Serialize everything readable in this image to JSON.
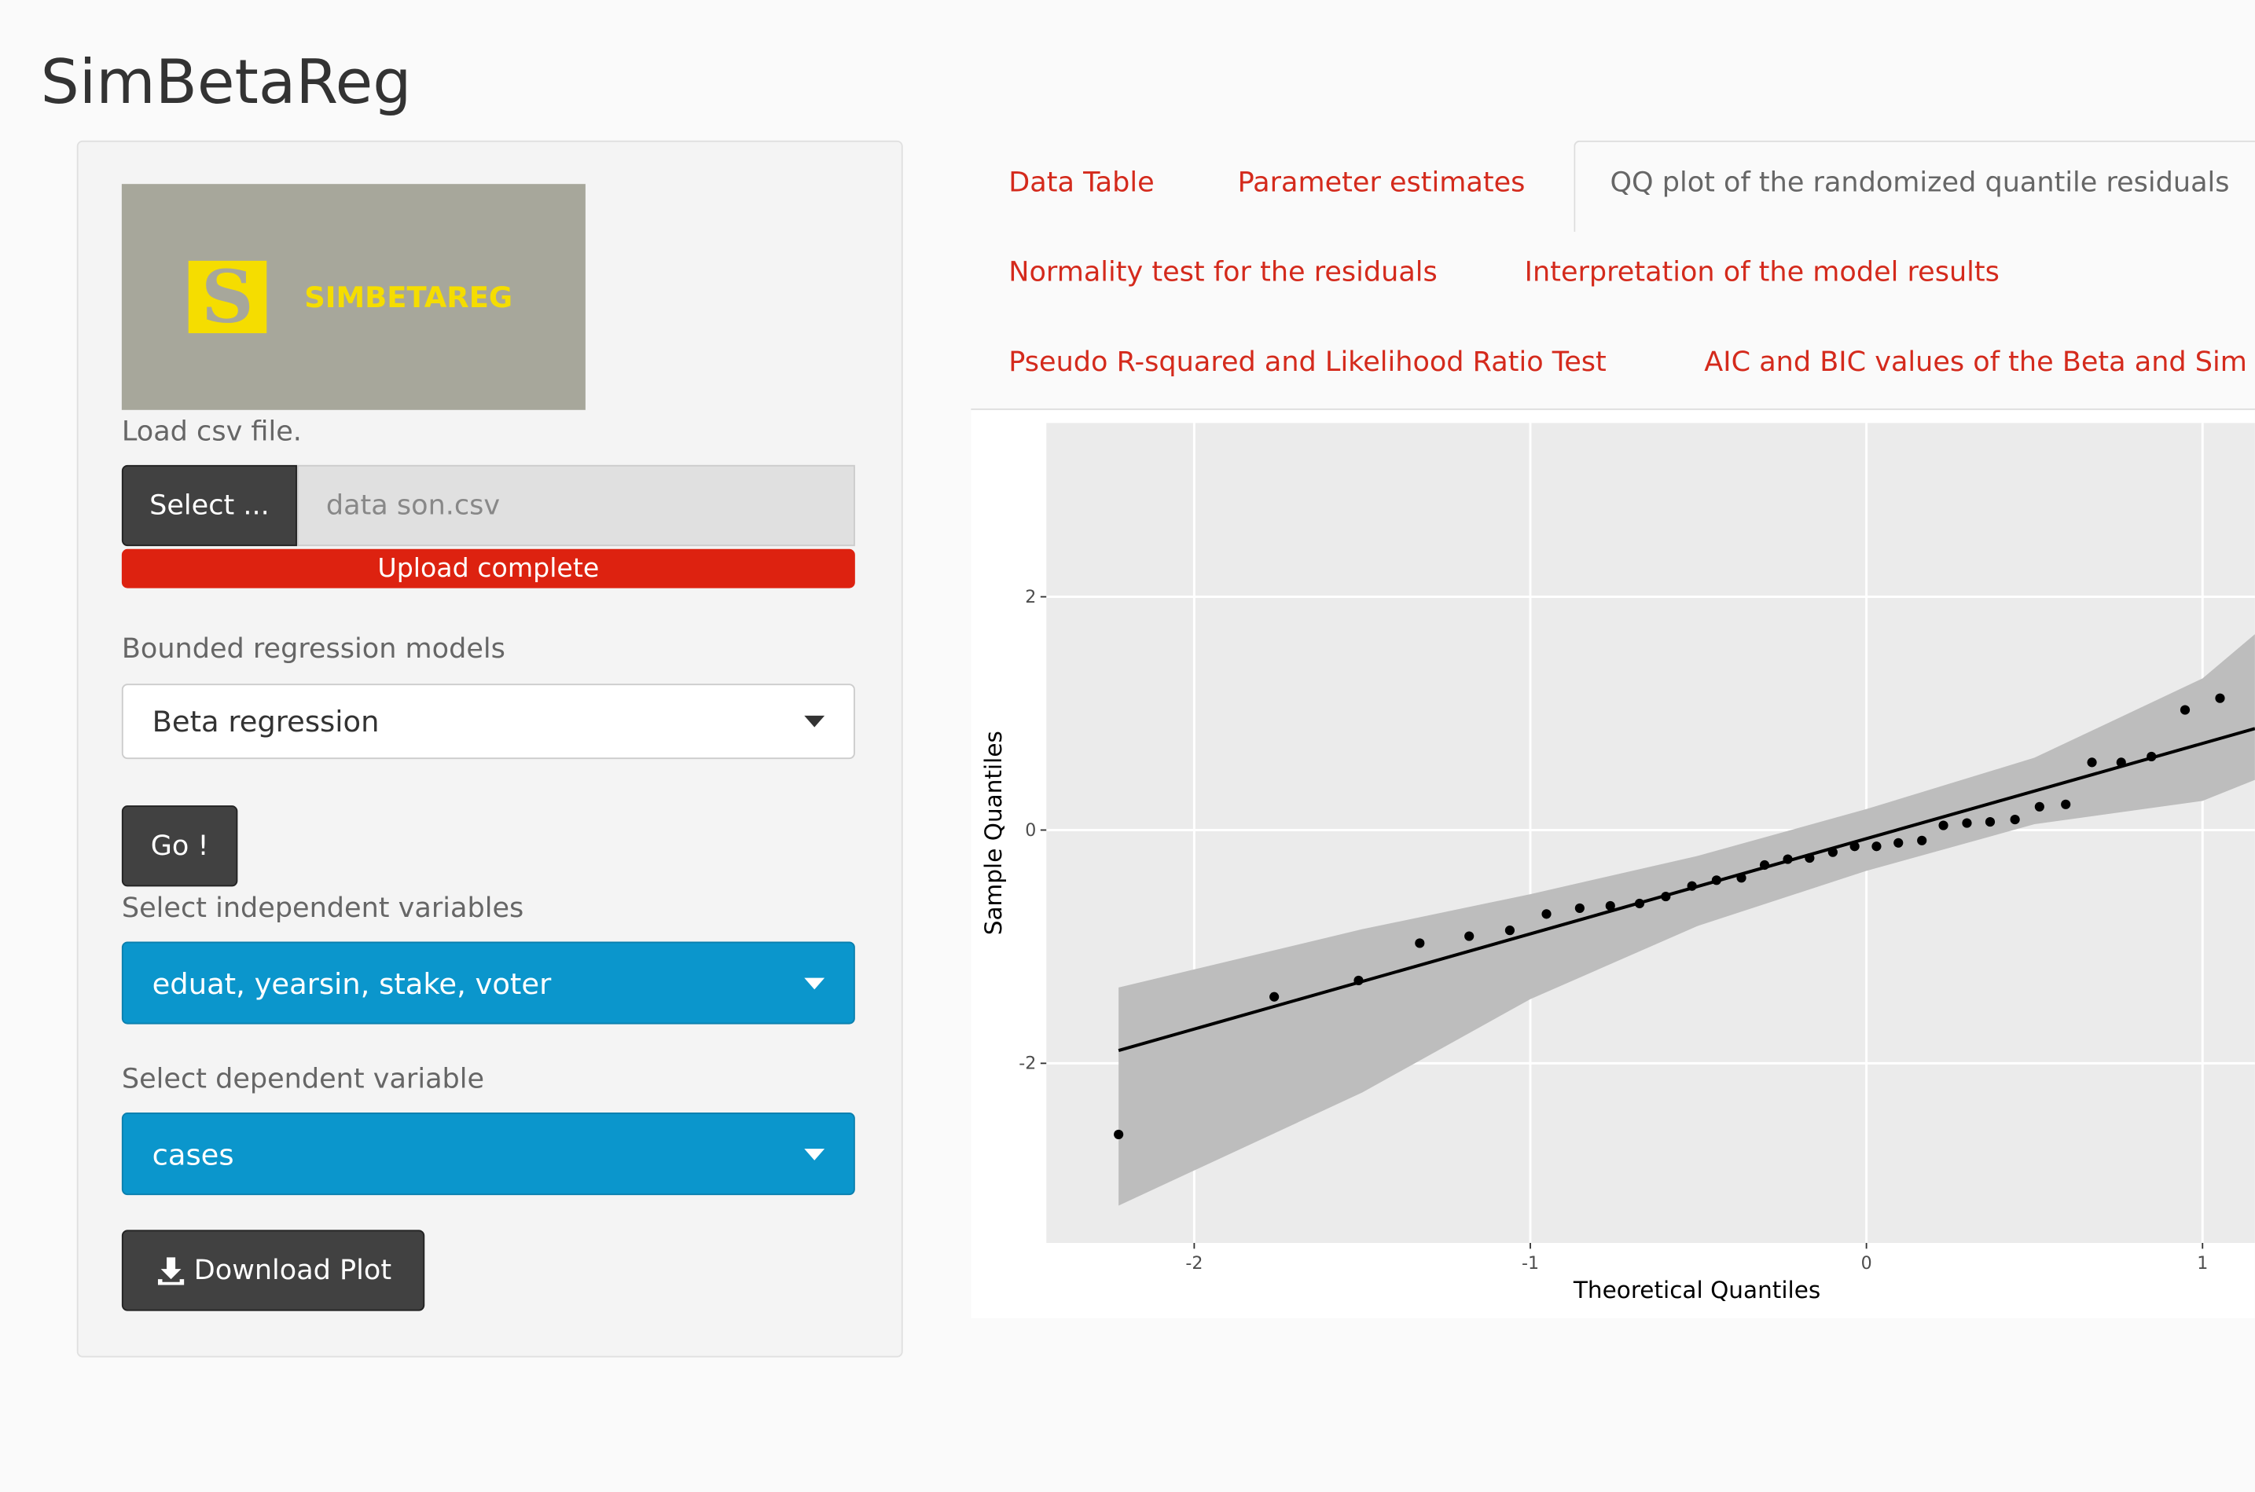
{
  "app_title": "SimBetaReg",
  "sidebar": {
    "logo_letter": "S",
    "logo_text": "SIMBETAREG",
    "file_label": "Load csv file.",
    "file_button": "Select ...",
    "file_name": "data son.csv",
    "upload_status": "Upload complete",
    "model_label": "Bounded regression models",
    "model_value": "Beta regression",
    "go_button": "Go !",
    "indep_label": "Select independent variables",
    "indep_value": "eduat, yearsin, stake, voter",
    "dep_label": "Select dependent variable",
    "dep_value": "cases",
    "download_button": "Download Plot"
  },
  "tabs": [
    "Data Table",
    "Parameter estimates",
    "QQ plot of the randomized quantile residuals",
    "Normality test for the residuals",
    "Interpretation of the model results",
    "Pseudo R-squared and Likelihood Ratio Test",
    "AIC and BIC values of the Beta and Sim"
  ],
  "chart_data": {
    "type": "scatter",
    "xlabel": "Theoretical Quantiles",
    "ylabel": "Sample Quantiles",
    "xlim": [
      -2.44,
      1.156
    ],
    "ylim": [
      -3.54,
      3.49
    ],
    "xticks": [
      -2,
      -1,
      0,
      1
    ],
    "yticks": [
      -2,
      0,
      2
    ],
    "grid": true,
    "point_color": "#000000",
    "x": [
      -2.225,
      -1.762,
      -1.511,
      -1.329,
      -1.182,
      -1.061,
      -0.952,
      -0.853,
      -0.762,
      -0.675,
      -0.597,
      -0.519,
      -0.446,
      -0.372,
      -0.303,
      -0.234,
      -0.169,
      -0.1,
      -0.035,
      0.03,
      0.095,
      0.165,
      0.229,
      0.299,
      0.368,
      0.442,
      0.515,
      0.593,
      0.671,
      0.758,
      0.848,
      0.948,
      1.052
    ],
    "y": [
      -2.61,
      -1.43,
      -1.29,
      -0.97,
      -0.91,
      -0.86,
      -0.72,
      -0.67,
      -0.65,
      -0.63,
      -0.57,
      -0.48,
      -0.43,
      -0.41,
      -0.3,
      -0.25,
      -0.24,
      -0.19,
      -0.14,
      -0.14,
      -0.11,
      -0.09,
      0.04,
      0.06,
      0.07,
      0.09,
      0.2,
      0.22,
      0.58,
      0.58,
      0.63,
      1.03,
      1.13
    ],
    "reference_line": {
      "x": [
        -2.225,
        1.156
      ],
      "y": [
        -1.89,
        0.87
      ],
      "color": "#000000"
    },
    "band": {
      "x": [
        -2.225,
        -1.5,
        -1,
        -0.5,
        0,
        0.5,
        1,
        1.156
      ],
      "lower": [
        -3.22,
        -2.25,
        -1.45,
        -0.82,
        -0.35,
        0.05,
        0.25,
        0.43
      ],
      "upper": [
        -1.35,
        -0.85,
        -0.55,
        -0.22,
        0.18,
        0.62,
        1.3,
        1.68
      ],
      "color": "#bdbdbd"
    }
  }
}
